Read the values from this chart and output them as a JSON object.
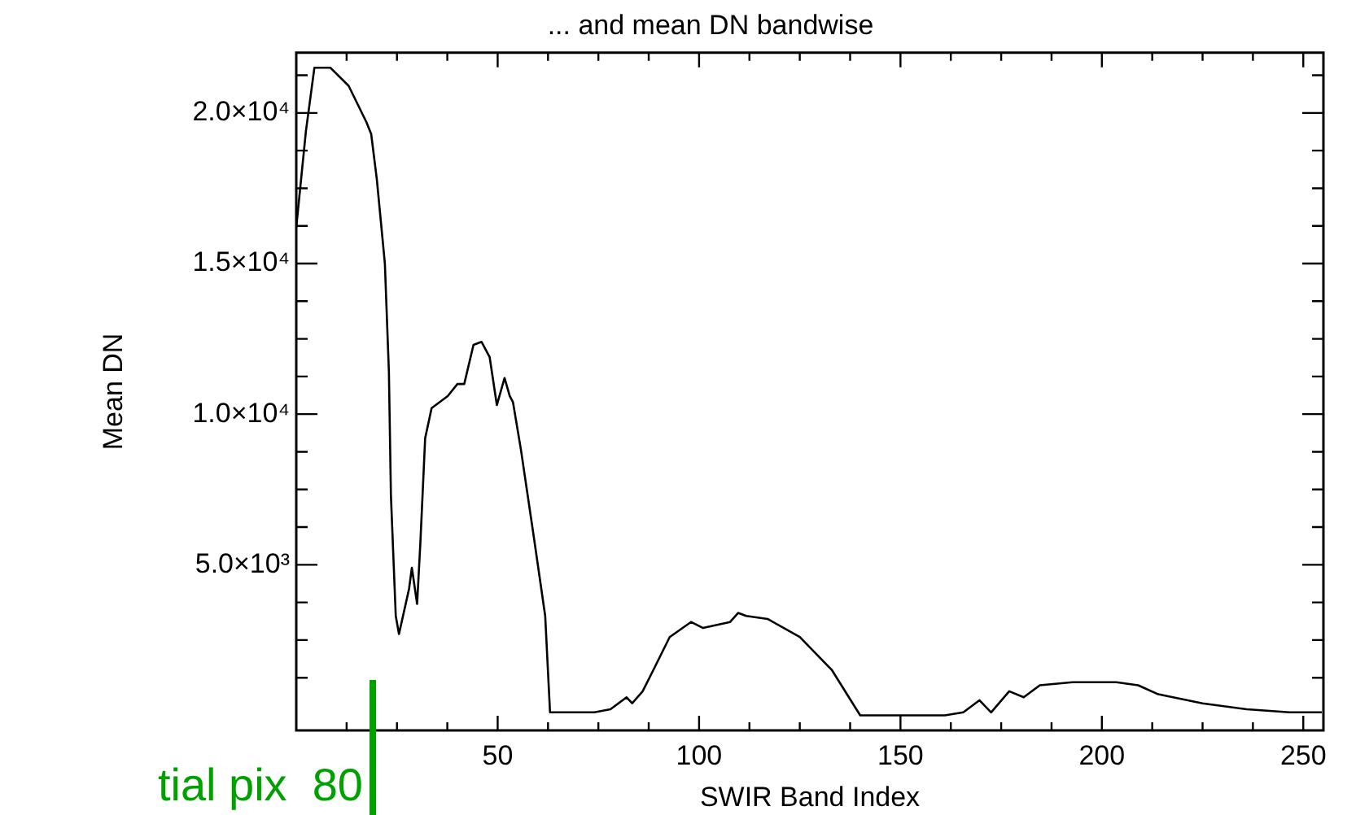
{
  "chart_data": {
    "type": "line",
    "title": "... and mean DN bandwise",
    "xlabel": "SWIR Band Index",
    "ylabel": "Mean DN",
    "x": [
      0,
      2.4,
      4.5,
      8.5,
      13,
      17.4,
      18.6,
      20,
      22,
      23,
      23.5,
      24.7,
      25.5,
      28,
      28.7,
      30,
      30.8,
      32,
      33.6,
      37.6,
      40,
      41.7,
      44,
      46,
      48,
      49.8,
      51.7,
      53,
      53.8,
      55.8,
      59,
      61.8,
      63,
      74,
      78,
      82,
      83.4,
      86,
      89,
      92.7,
      98,
      101,
      107.7,
      109.7,
      111.7,
      117,
      125,
      133,
      140,
      161,
      165.6,
      169.6,
      172.5,
      177,
      180.6,
      184.6,
      192.7,
      203.6,
      209,
      214,
      225,
      236,
      246.6,
      254.6
    ],
    "series": [
      {
        "color": "#000000",
        "values": [
          16200,
          19400,
          21500,
          21500,
          20900,
          19700,
          19300,
          17800,
          15000,
          11400,
          7300,
          3300,
          2700,
          4200,
          4900,
          3700,
          5700,
          9200,
          10200,
          10600,
          11000,
          11000,
          12300,
          12400,
          11900,
          10300,
          11200,
          10600,
          10400,
          8800,
          5900,
          3300,
          100,
          100,
          200,
          600,
          400,
          800,
          1600,
          2600,
          3100,
          2900,
          3100,
          3400,
          3300,
          3200,
          2600,
          1500,
          0,
          0,
          100,
          500,
          100,
          800,
          600,
          1000,
          1100,
          1100,
          1000,
          700,
          400,
          200,
          100,
          100
        ]
      }
    ],
    "xlim": [
      0,
      255
    ],
    "xticks": [
      {
        "value": 12.5,
        "label": null
      },
      {
        "value": 25,
        "label": null
      },
      {
        "value": 37.5,
        "label": null
      },
      50,
      {
        "value": 62.5,
        "label": null
      },
      {
        "value": 75,
        "label": null
      },
      {
        "value": 87.5,
        "label": null
      },
      100,
      {
        "value": 112.5,
        "label": null
      },
      {
        "value": 125,
        "label": null
      },
      {
        "value": 137.5,
        "label": null
      },
      150,
      {
        "value": 162.5,
        "label": null
      },
      {
        "value": 175,
        "label": null
      },
      {
        "value": 187.5,
        "label": null
      },
      200,
      {
        "value": 212.5,
        "label": null
      },
      {
        "value": 225,
        "label": null
      },
      {
        "value": 237.5,
        "label": null
      },
      250
    ],
    "ylim": [
      -500,
      22000
    ],
    "yticks": [
      {
        "value": 1250,
        "label": null
      },
      {
        "value": 2500,
        "label": null
      },
      {
        "value": 3750,
        "label": null
      },
      {
        "value": 5000,
        "label": "5.0×10³"
      },
      {
        "value": 6250,
        "label": null
      },
      {
        "value": 7500,
        "label": null
      },
      {
        "value": 8750,
        "label": null
      },
      {
        "value": 10000,
        "label": "1.0×10⁴"
      },
      {
        "value": 11250,
        "label": null
      },
      {
        "value": 12500,
        "label": null
      },
      {
        "value": 13750,
        "label": null
      },
      {
        "value": 15000,
        "label": "1.5×10⁴"
      },
      {
        "value": 16250,
        "label": null
      },
      {
        "value": 17500,
        "label": null
      },
      {
        "value": 18750,
        "label": null
      },
      {
        "value": 20000,
        "label": "2.0×10⁴"
      },
      {
        "value": 21250,
        "label": null
      }
    ],
    "ref_lines": [
      {
        "axis": "x",
        "value": 19,
        "label": "tial pix  80",
        "color": "#00a000"
      }
    ],
    "grid": false,
    "legend": false,
    "marker": "none",
    "line_style": "solid"
  }
}
